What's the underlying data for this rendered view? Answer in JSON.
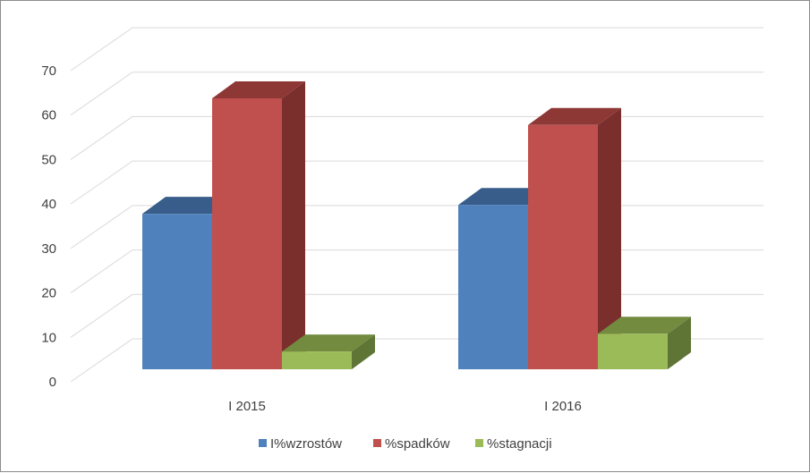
{
  "chart_data": {
    "type": "bar",
    "style": "3d-clustered-column",
    "categories": [
      "I 2015",
      "I 2016"
    ],
    "series": [
      {
        "name": "I%wzrostów",
        "values": [
          35,
          37
        ],
        "color": "#4f81bd",
        "top_color": "#385d8a",
        "side_color": "#2f4f76"
      },
      {
        "name": "%spadków",
        "values": [
          61,
          55
        ],
        "color": "#c0504d",
        "top_color": "#8e3836",
        "side_color": "#7a2f2d"
      },
      {
        "name": "%stagnacji",
        "values": [
          4,
          8
        ],
        "color": "#9bbb59",
        "top_color": "#728b3f",
        "side_color": "#5f7535"
      }
    ],
    "y_ticks": [
      "0",
      "10",
      "20",
      "30",
      "40",
      "50",
      "60",
      "70"
    ],
    "ylim": [
      0,
      70
    ],
    "grid": true,
    "legend_position": "bottom",
    "title": "",
    "xlabel": "",
    "ylabel": ""
  }
}
